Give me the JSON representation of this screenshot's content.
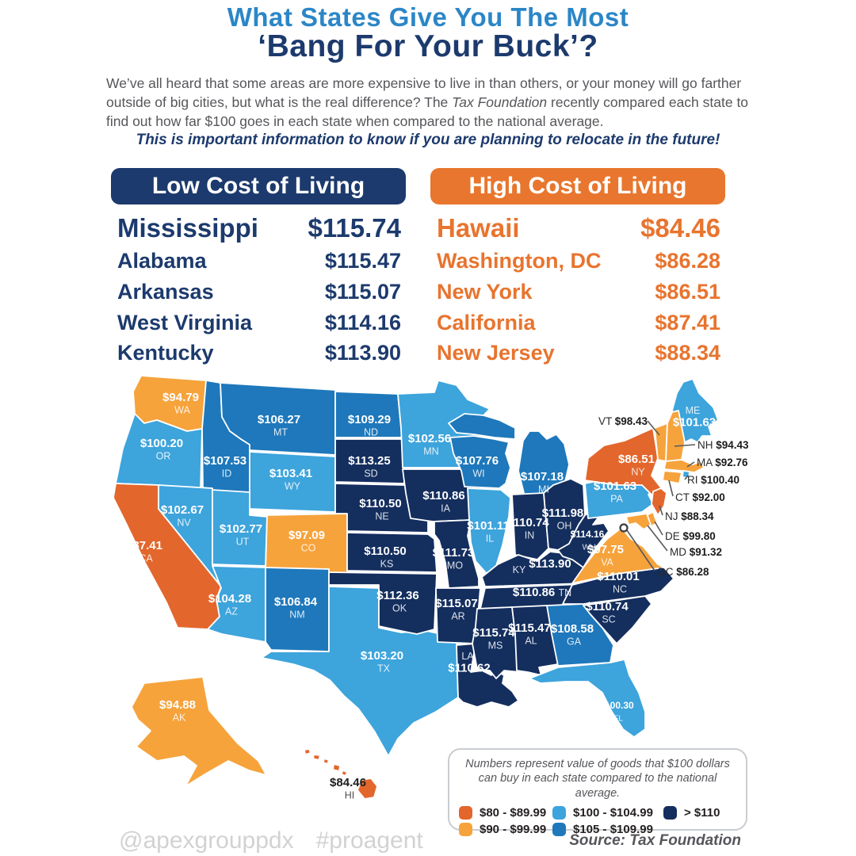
{
  "header": {
    "title_line1": "What States Give You The Most",
    "title_line2": "‘Bang For Your Buck’?",
    "intro_before": "We’ve all heard that some areas are more expensive to live in than others, or your money will go farther outside of big cities, but what is the real difference? The ",
    "intro_italic": "Tax Foundation",
    "intro_after": " recently compared each state to find out how far $100 goes in each state when compared to the national average.",
    "callout": "This is important information to know if you are planning to relocate in the future!"
  },
  "tables": {
    "low_cost": {
      "title": "Low Cost of Living",
      "rows": [
        {
          "name": "Mississippi",
          "value": "$115.74"
        },
        {
          "name": "Alabama",
          "value": "$115.47"
        },
        {
          "name": "Arkansas",
          "value": "$115.07"
        },
        {
          "name": "West Virginia",
          "value": "$114.16"
        },
        {
          "name": "Kentucky",
          "value": "$113.90"
        }
      ]
    },
    "high_cost": {
      "title": "High Cost of Living",
      "rows": [
        {
          "name": "Hawaii",
          "value": "$84.46"
        },
        {
          "name": "Washington, DC",
          "value": "$86.28"
        },
        {
          "name": "New York",
          "value": "$86.51"
        },
        {
          "name": "California",
          "value": "$87.41"
        },
        {
          "name": "New Jersey",
          "value": "$88.34"
        }
      ]
    }
  },
  "legend": {
    "note": "Numbers represent value of goods that $100 dollars can buy in each state compared to the national average.",
    "items": [
      {
        "label": "$80 - $89.99",
        "color": "#e3662c"
      },
      {
        "label": "$90 - $99.99",
        "color": "#f6a33c"
      },
      {
        "label": "$100 - $104.99",
        "color": "#3da4dc"
      },
      {
        "label": "$105 - $109.99",
        "color": "#1e78bb"
      },
      {
        "label": "> $110",
        "color": "#142e5e"
      }
    ],
    "thresholds": [
      90,
      100,
      105,
      110
    ]
  },
  "source": "Source: Tax Foundation",
  "footer": {
    "handle": "@apexgrouppdx",
    "hashtag": "#proagent"
  },
  "colors": {
    "title_blue": "#2b86c7",
    "title_navy": "#1c3a6d",
    "table_orange": "#e8742e",
    "text_gray": "#55565a",
    "footer_gray": "#d2d2d2"
  },
  "chart_data": {
    "type": "heatmap",
    "subtype": "us-choropleth",
    "title": "What States Give You The Most ‘Bang For Your Buck’?",
    "unit": "Value of goods that $100 can buy vs. national average (USD)",
    "legend_position": "bottom-right",
    "bins": [
      "$80 - $89.99",
      "$90 - $99.99",
      "$100 - $104.99",
      "$105 - $109.99",
      "> $110"
    ],
    "states": {
      "WA": 94.79,
      "OR": 100.2,
      "CA": 87.41,
      "ID": 107.53,
      "NV": 102.67,
      "MT": 106.27,
      "WY": 103.41,
      "UT": 102.77,
      "CO": 97.09,
      "AZ": 104.28,
      "NM": 106.84,
      "TX": 103.2,
      "ND": 109.29,
      "SD": 113.25,
      "NE": 110.5,
      "KS": 110.5,
      "OK": 112.36,
      "MN": 102.56,
      "IA": 110.86,
      "MO": 111.73,
      "AR": 115.07,
      "LA": 110.62,
      "WI": 107.76,
      "IL": 101.11,
      "MI": 107.18,
      "IN": 110.74,
      "OH": 111.98,
      "KY": 113.9,
      "TN": 110.86,
      "MS": 115.74,
      "AL": 115.47,
      "GA": 108.58,
      "FL": 100.3,
      "SC": 110.74,
      "NC": 110.01,
      "WV": 114.16,
      "VA": 97.75,
      "PA": 101.63,
      "NY": 86.51,
      "ME": 101.63,
      "VT": 98.43,
      "NH": 94.43,
      "MA": 92.76,
      "RI": 100.4,
      "CT": 92.0,
      "NJ": 88.34,
      "DE": 99.8,
      "MD": 91.32,
      "DC": 86.28,
      "AK": 94.88,
      "HI": 84.46
    }
  }
}
